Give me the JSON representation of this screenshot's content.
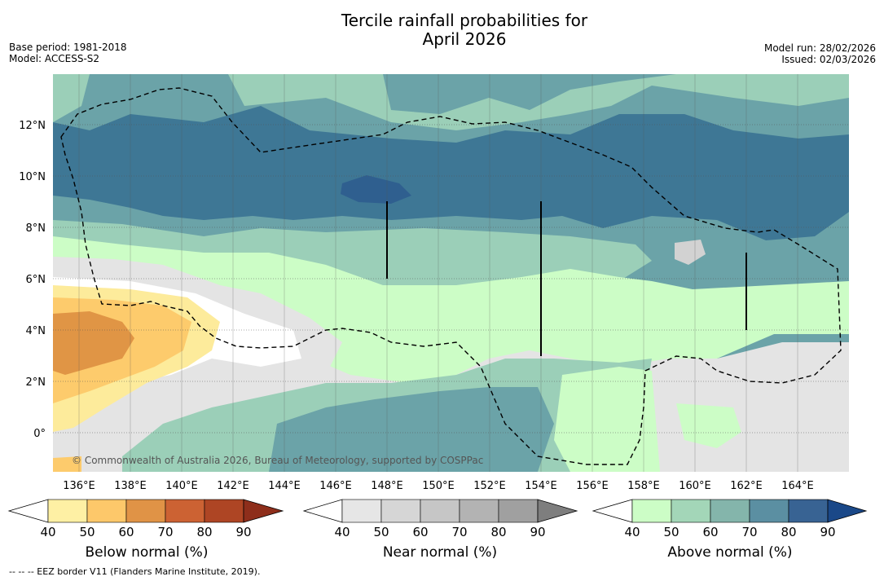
{
  "title_line1": "Tercile rainfall probabilities for",
  "title_line2": "April 2026",
  "base_period": "Base period: 1981-2018",
  "model": "Model: ACCESS-S2",
  "model_run": "Model run: 28/02/2026",
  "issued": "Issued: 02/03/2026",
  "copyright": "© Commonwealth of Australia 2026, Bureau of Meteorology, supported by COSPPac",
  "footer": "--  --  -- EEZ border V11 (Flanders Marine Institute, 2019).",
  "lat_labels": [
    "12°N",
    "10°N",
    "8°N",
    "6°N",
    "4°N",
    "2°N",
    "0°"
  ],
  "lon_labels": [
    "136°E",
    "138°E",
    "140°E",
    "142°E",
    "144°E",
    "146°E",
    "148°E",
    "150°E",
    "152°E",
    "154°E",
    "156°E",
    "158°E",
    "160°E",
    "162°E",
    "164°E"
  ],
  "colorbars": [
    {
      "label": "Below normal (%)",
      "ticks": [
        "40",
        "50",
        "60",
        "70",
        "80",
        "90"
      ],
      "colors": [
        "#fef0a4",
        "#fdc86a",
        "#e09346",
        "#cc6233",
        "#ae4524",
        "#8e2e1b"
      ]
    },
    {
      "label": "Near normal (%)",
      "ticks": [
        "40",
        "50",
        "60",
        "70",
        "80",
        "90"
      ],
      "colors": [
        "#e6e6e6",
        "#d6d6d6",
        "#c6c6c6",
        "#b3b3b3",
        "#a0a0a0",
        "#7e7e7e"
      ]
    },
    {
      "label": "Above normal (%)",
      "ticks": [
        "40",
        "50",
        "60",
        "70",
        "80",
        "90"
      ],
      "colors": [
        "#ccfdc6",
        "#a3d6b8",
        "#84b5ab",
        "#5b8fa2",
        "#386393",
        "#1a4888"
      ]
    }
  ],
  "palette": {
    "above_50": "#9bcfb8",
    "above_60": "#6ba3a8",
    "above_70": "#3e7795",
    "above_80": "#2f5f8f",
    "near_40": "#e4e4e4",
    "near_50": "#d2d2d2",
    "below_40": "#fdeb9b",
    "below_50": "#fdcb6c",
    "below_60": "#e09545",
    "above_40": "#ccfdc6",
    "white": "#ffffff"
  }
}
